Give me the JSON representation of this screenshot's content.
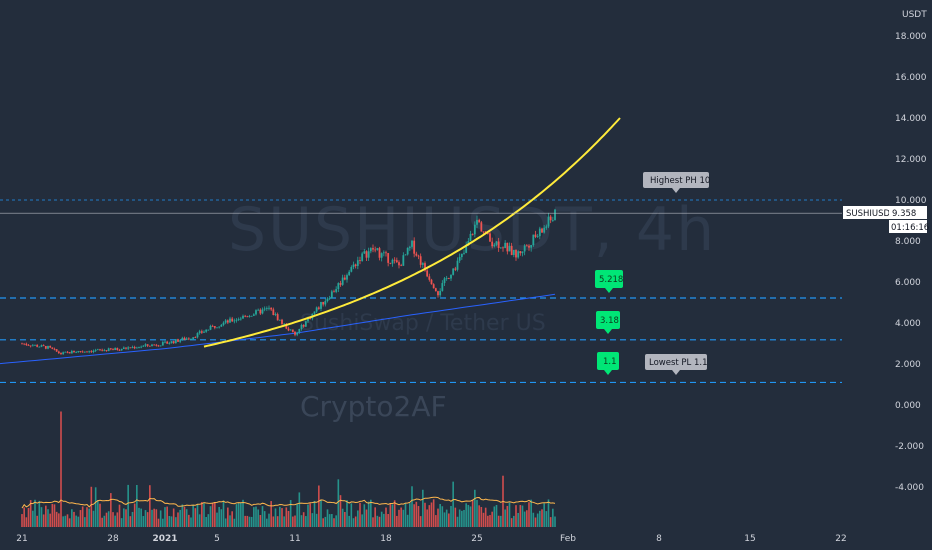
{
  "watermark": {
    "symbol": "SUSHIUSDT, 4h",
    "name": "SushiSwap / Tether US",
    "author": "Crypto2AF"
  },
  "axis": {
    "currency": "USDT"
  },
  "price_label": {
    "symbol": "SUSHIUSDT",
    "price": "9.358",
    "countdown": "01:16:16"
  },
  "annotations": {
    "highest": "Highest PH 10",
    "lowest": "Lowest PL 1.1",
    "levels": [
      "5.218",
      "3.18",
      "1.1"
    ]
  },
  "colors": {
    "background": "#232d3c",
    "up": "#26a69a",
    "down": "#ef5350",
    "curve": "#ffeb3b",
    "ma": "#2962ff",
    "level_line": "#2196f3",
    "tag": "#00e676",
    "label": "#b2b5be"
  },
  "chart_data": {
    "type": "candlestick",
    "title": "SUSHIUSDT, 4h",
    "ylabel": "USDT",
    "ylim": [
      -5.2,
      18.8
    ],
    "y_ticks": [
      "18.000",
      "16.000",
      "14.000",
      "12.000",
      "10.000",
      "8.000",
      "6.000",
      "4.000",
      "2.000",
      "0.000",
      "-2.000",
      "-4.000"
    ],
    "y_tick_values": [
      18,
      16,
      14,
      12,
      10,
      8,
      6,
      4,
      2,
      0,
      -2,
      -4
    ],
    "x_ticks": [
      "21",
      "28",
      "2021",
      "5",
      "11",
      "18",
      "25",
      "Feb",
      "8",
      "15",
      "22"
    ],
    "x_tick_bold": [
      false,
      false,
      true,
      false,
      false,
      false,
      false,
      false,
      false,
      false,
      false
    ],
    "x_tick_days": [
      0,
      7,
      11,
      15,
      21,
      28,
      35,
      42,
      49,
      56,
      63
    ],
    "price_anchors": [
      {
        "day": 0,
        "price": 3.0
      },
      {
        "day": 2,
        "price": 2.8
      },
      {
        "day": 3,
        "price": 2.5
      },
      {
        "day": 4,
        "price": 2.6
      },
      {
        "day": 7,
        "price": 2.7
      },
      {
        "day": 11,
        "price": 3.0
      },
      {
        "day": 13,
        "price": 3.3
      },
      {
        "day": 15,
        "price": 3.9
      },
      {
        "day": 17,
        "price": 4.3
      },
      {
        "day": 19,
        "price": 4.7
      },
      {
        "day": 20,
        "price": 4.0
      },
      {
        "day": 21,
        "price": 3.4
      },
      {
        "day": 22,
        "price": 4.2
      },
      {
        "day": 24,
        "price": 5.6
      },
      {
        "day": 26,
        "price": 7.2
      },
      {
        "day": 27,
        "price": 7.6
      },
      {
        "day": 29,
        "price": 6.8
      },
      {
        "day": 30,
        "price": 7.8
      },
      {
        "day": 31,
        "price": 6.6
      },
      {
        "day": 32,
        "price": 5.5
      },
      {
        "day": 33,
        "price": 6.5
      },
      {
        "day": 34,
        "price": 7.4
      },
      {
        "day": 35,
        "price": 9.0
      },
      {
        "day": 36,
        "price": 8.0
      },
      {
        "day": 37,
        "price": 7.8
      },
      {
        "day": 38,
        "price": 7.3
      },
      {
        "day": 39,
        "price": 7.9
      },
      {
        "day": 40,
        "price": 8.5
      },
      {
        "day": 41,
        "price": 9.36
      }
    ],
    "moving_average": [
      {
        "day": -2,
        "price": 2.0
      },
      {
        "day": 11,
        "price": 2.75
      },
      {
        "day": 21,
        "price": 3.5
      },
      {
        "day": 30,
        "price": 4.4
      },
      {
        "day": 41,
        "price": 5.4
      }
    ],
    "projection_curve": {
      "day_start": 14,
      "day_end": 46,
      "price_start": 2.85,
      "price_end": 14.0
    },
    "levels": [
      {
        "name": "Highest PH",
        "value": 10.0
      },
      {
        "name": "5.218",
        "value": 5.218
      },
      {
        "name": "3.18",
        "value": 3.18
      },
      {
        "name": "Lowest PL",
        "value": 1.1
      }
    ],
    "current_price": 9.358,
    "volume_spike_day": 3
  }
}
